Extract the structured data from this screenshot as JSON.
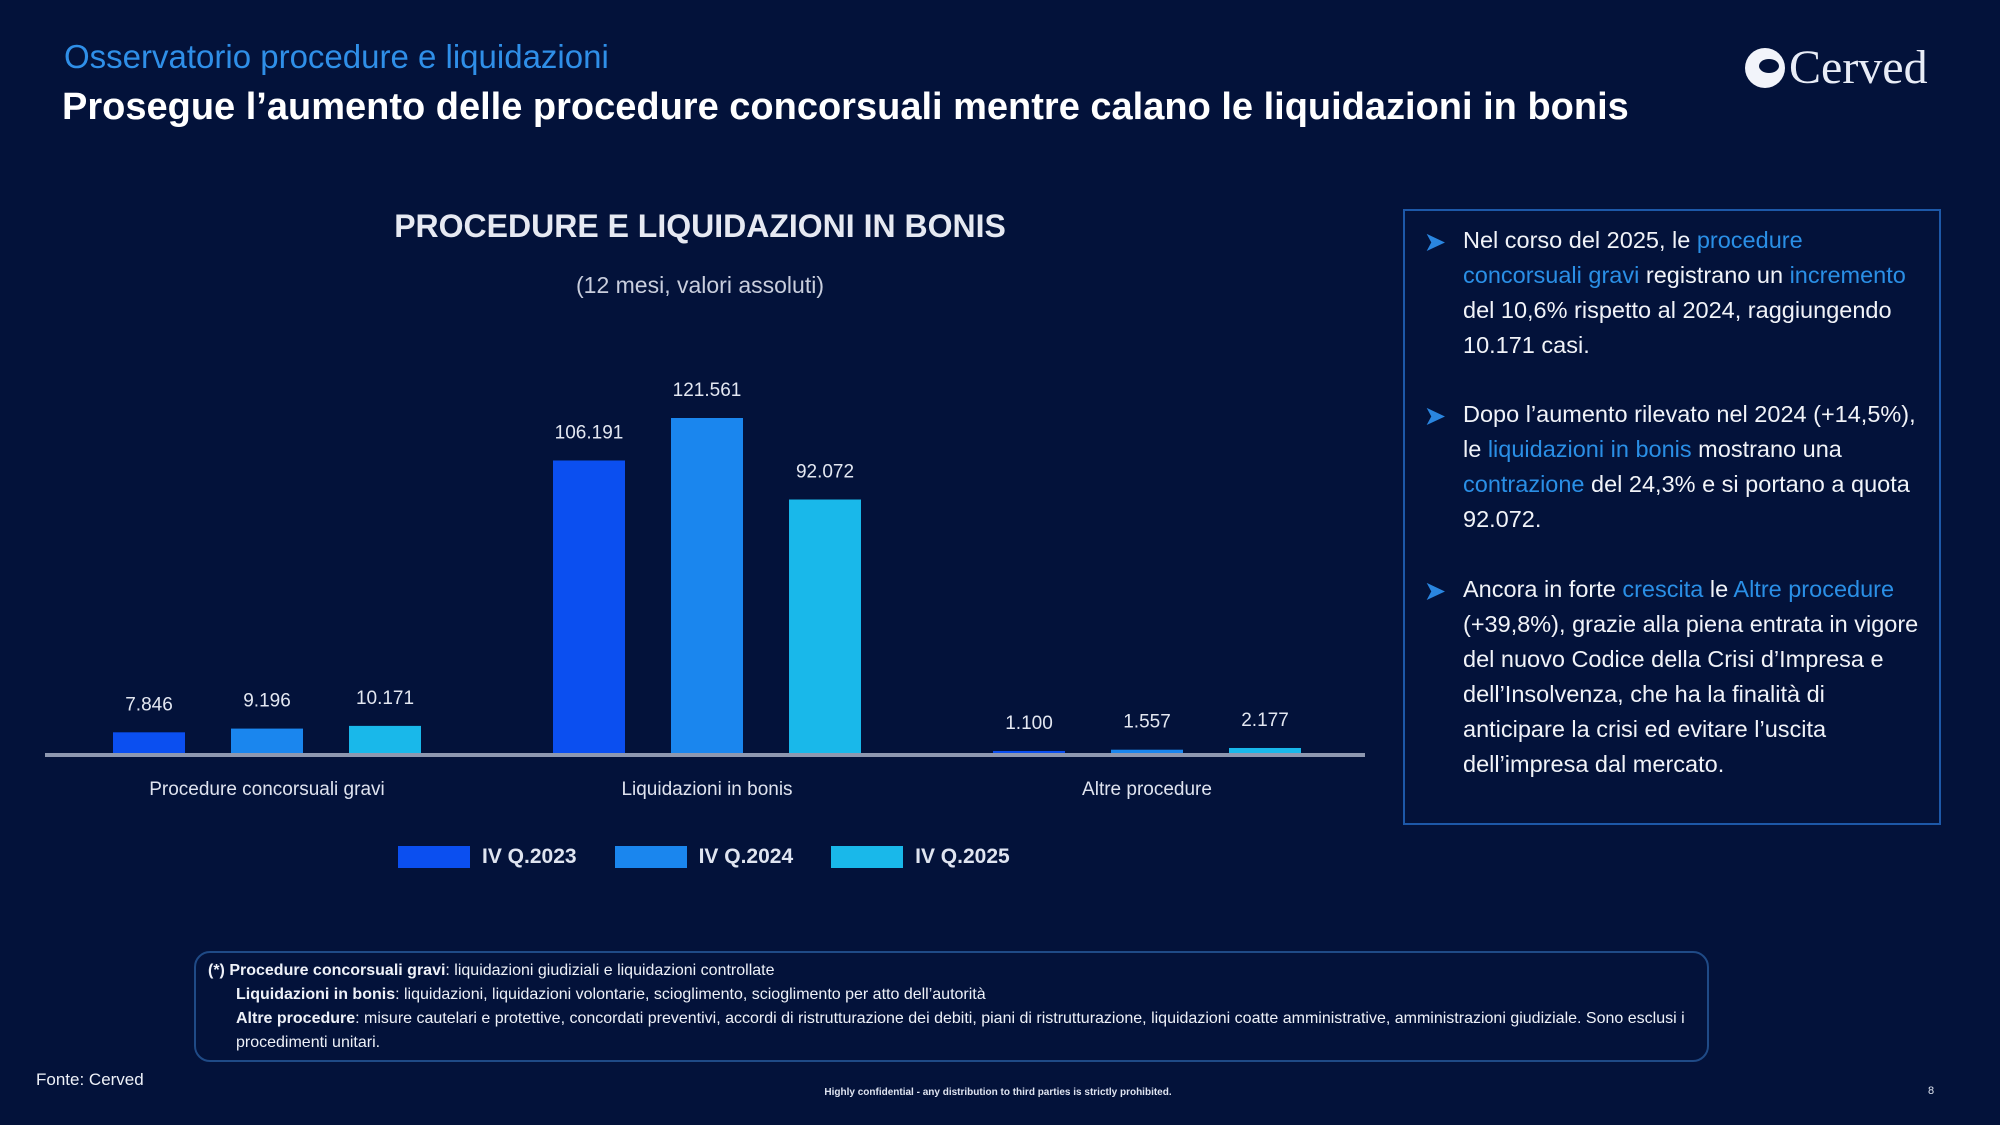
{
  "header": {
    "kicker": "Osservatorio procedure e liquidazioni",
    "title": "Prosegue l’aumento delle procedure concorsuali mentre calano le liquidazioni in bonis",
    "logo_text": "Cerved"
  },
  "colors": {
    "background": "#03123a",
    "accent": "#2a8fe6",
    "series": [
      "#0b4ff0",
      "#1a86ee",
      "#19b8ea"
    ]
  },
  "chart_data": {
    "type": "bar",
    "title": "PROCEDURE E LIQUIDAZIONI IN BONIS",
    "subtitle": "(12 mesi, valori assoluti)",
    "categories": [
      "Procedure concorsuali gravi",
      "Liquidazioni in bonis",
      "Altre procedure"
    ],
    "series": [
      {
        "name": "IV Q.2023",
        "values": [
          7846,
          106191,
          1100
        ],
        "labels": [
          "7.846",
          "106.191",
          "1.100"
        ]
      },
      {
        "name": "IV Q.2024",
        "values": [
          9196,
          121561,
          1557
        ],
        "labels": [
          "9.196",
          "121.561",
          "1.557"
        ]
      },
      {
        "name": "IV Q.2025",
        "values": [
          10171,
          92072,
          2177
        ],
        "labels": [
          "10.171",
          "92.072",
          "2.177"
        ]
      }
    ],
    "ylim": [
      0,
      121561
    ],
    "grid": false,
    "legend": "bottom"
  },
  "insights": [
    {
      "parts": [
        [
          "Nel corso del 2025, le ",
          false
        ],
        [
          "procedure concorsuali gravi",
          true
        ],
        [
          " registrano un ",
          false
        ],
        [
          "incremento",
          true
        ],
        [
          " del 10,6% rispetto al 2024, raggiungendo 10.171 casi.",
          false
        ]
      ]
    },
    {
      "parts": [
        [
          "Dopo l’aumento rilevato nel 2024 (+14,5%), le ",
          false
        ],
        [
          "liquidazioni in bonis",
          true
        ],
        [
          " mostrano una ",
          false
        ],
        [
          "contrazione",
          true
        ],
        [
          " del 24,3% e si portano a quota 92.072.",
          false
        ]
      ]
    },
    {
      "parts": [
        [
          "Ancora in forte ",
          false
        ],
        [
          "crescita",
          true
        ],
        [
          " le ",
          false
        ],
        [
          "Altre procedure",
          true
        ],
        [
          " (+39,8%), grazie alla piena entrata in vigore del nuovo Codice della Crisi d’Impresa e dell’Insolvenza, che ha la finalità di anticipare la crisi ed evitare l’uscita dell’impresa dal mercato.",
          false
        ]
      ]
    }
  ],
  "notes": {
    "l1_bold": "(*) Procedure concorsuali gravi",
    "l1": ": liquidazioni giudiziali e liquidazioni controllate",
    "l2_bold": "Liquidazioni in bonis",
    "l2": ": liquidazioni, liquidazioni volontarie, scioglimento, scioglimento per atto dell’autorità",
    "l3_bold": "Altre procedure",
    "l3": ": misure cautelari e protettive, concordati preventivi, accordi di ristrutturazione dei debiti, piani di ristrutturazione, liquidazioni coatte amministrative, amministrazioni giudiziale. Sono esclusi i procedimenti unitari."
  },
  "footer": {
    "source": "Fonte: Cerved",
    "confidential": "Highly confidential - any distribution to third parties is strictly prohibited.",
    "page": "8"
  }
}
